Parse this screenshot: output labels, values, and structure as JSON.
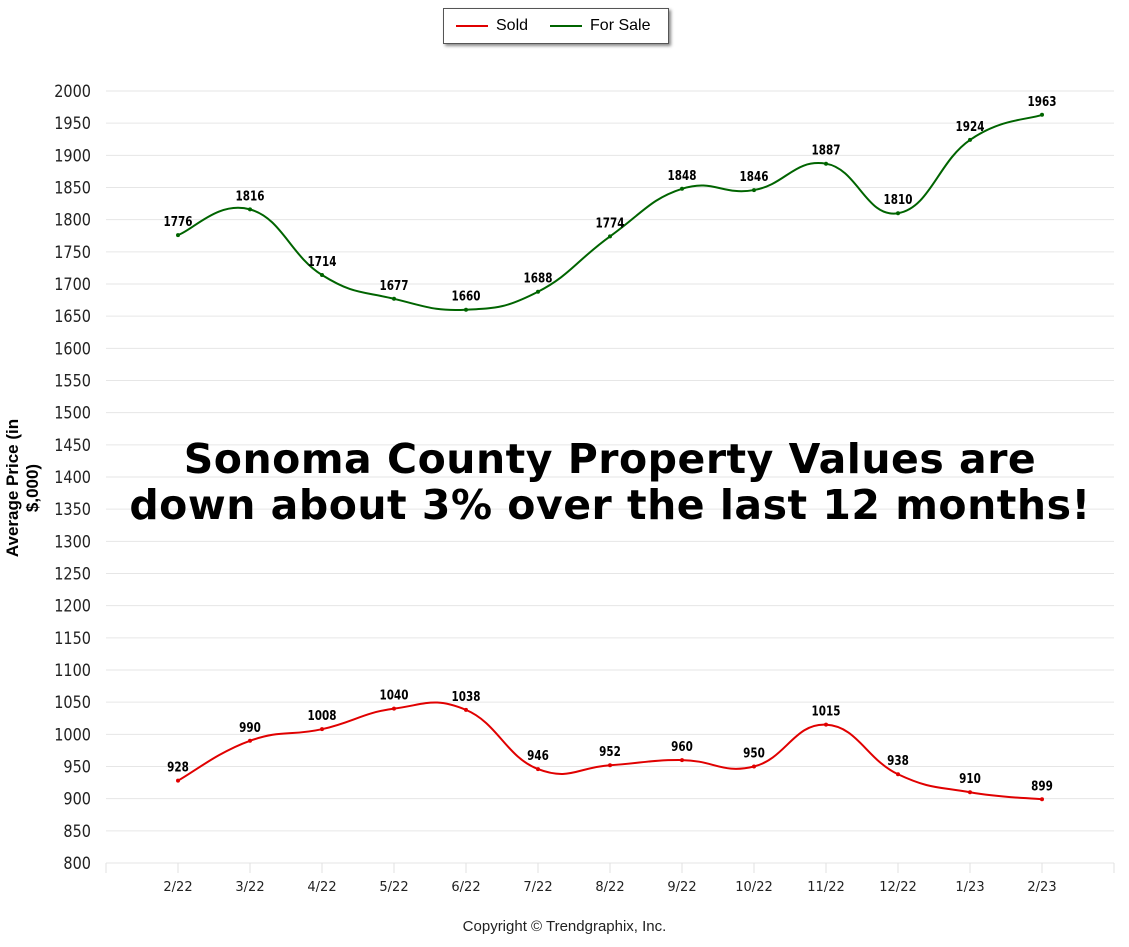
{
  "chart_data": {
    "type": "line",
    "categories": [
      "2/22",
      "3/22",
      "4/22",
      "5/22",
      "6/22",
      "7/22",
      "8/22",
      "9/22",
      "10/22",
      "11/22",
      "12/22",
      "1/23",
      "2/23"
    ],
    "series": [
      {
        "name": "Sold",
        "color": "#e00000",
        "values": [
          928,
          990,
          1008,
          1040,
          1038,
          946,
          952,
          960,
          950,
          1015,
          938,
          910,
          899
        ]
      },
      {
        "name": "For Sale",
        "color": "#006400",
        "values": [
          1776,
          1816,
          1714,
          1677,
          1660,
          1688,
          1774,
          1848,
          1846,
          1887,
          1810,
          1924,
          1963
        ]
      }
    ],
    "ylabel": "Average Price (in $,000)",
    "xlabel": "",
    "ylim": [
      800,
      2000
    ],
    "ytick_step": 50,
    "grid": true,
    "legend_placement": "top-center",
    "smooth": true,
    "data_labels": true
  },
  "annotation": {
    "line1": "Sonoma County Property Values are",
    "line2": "down about 3% over the last 12 months!"
  },
  "copyright": "Copyright © Trendgraphix, Inc."
}
